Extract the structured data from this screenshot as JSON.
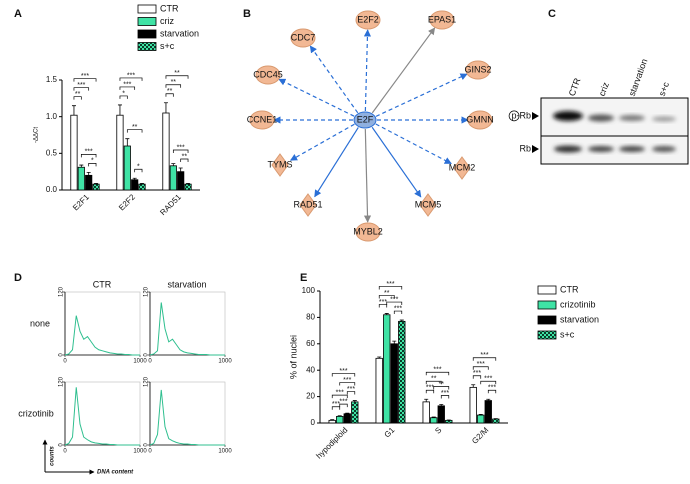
{
  "panels": [
    "A",
    "B",
    "C",
    "D",
    "E"
  ],
  "chart_data": [
    {
      "type": "bar",
      "y_label": "-ΔΔCt",
      "categories": [
        "E2F1",
        "E2F2",
        "RAD51"
      ],
      "series": [
        {
          "name": "CTR",
          "color": "#ffffff",
          "values": [
            1.02,
            1.02,
            1.05
          ],
          "errors": [
            0.13,
            0.14,
            0.14
          ]
        },
        {
          "name": "criz",
          "color": "#3fe3a5",
          "values": [
            0.31,
            0.6,
            0.33
          ],
          "errors": [
            0.03,
            0.1,
            0.03
          ]
        },
        {
          "name": "starvation",
          "color": "#000000",
          "values": [
            0.2,
            0.14,
            0.25
          ],
          "errors": [
            0.04,
            0.02,
            0.05
          ]
        },
        {
          "name": "s+c",
          "color": "#3fe3a5",
          "pattern": "checker",
          "values": [
            0.08,
            0.08,
            0.08
          ],
          "errors": [
            0.01,
            0.01,
            0.01
          ]
        }
      ],
      "ylim": [
        0,
        1.5
      ],
      "yticks": [
        {
          "value": 0,
          "label": "0.0"
        },
        0.5,
        {
          "value": 1,
          "label": "1.0"
        },
        1.5
      ],
      "significance": [
        [
          "***",
          "***",
          "**",
          "***",
          "*"
        ],
        [
          "***",
          "***",
          "*",
          "**",
          "*"
        ],
        [
          "**",
          "**",
          "**",
          "***",
          "**"
        ]
      ]
    },
    {
      "type": "line",
      "color": "#2fbf8f",
      "x": [
        0,
        50,
        100,
        150,
        200,
        250,
        300,
        350,
        400,
        450,
        500,
        550,
        600,
        650,
        700,
        750,
        800,
        850,
        900,
        950,
        1000
      ],
      "values": [
        0,
        2,
        10,
        75,
        45,
        30,
        35,
        25,
        15,
        10,
        8,
        6,
        4,
        3,
        2,
        2,
        1,
        1,
        0,
        0,
        0
      ],
      "xlim": [
        0,
        1000
      ],
      "xticks": [
        0,
        1000
      ],
      "ylim": [
        0,
        120
      ],
      "yticks": [
        0,
        120
      ]
    },
    {
      "type": "line",
      "color": "#2fbf8f",
      "x": [
        0,
        50,
        100,
        150,
        200,
        250,
        300,
        350,
        400,
        450,
        500,
        550,
        600,
        650,
        700,
        750,
        800,
        850,
        900,
        950,
        1000
      ],
      "values": [
        0,
        2,
        8,
        100,
        50,
        25,
        30,
        20,
        10,
        6,
        4,
        3,
        2,
        1,
        1,
        1,
        0,
        0,
        0,
        0,
        0
      ],
      "xlim": [
        0,
        1000
      ],
      "xticks": [
        0,
        1000
      ],
      "ylim": [
        0,
        120
      ],
      "yticks": [
        0,
        120
      ]
    },
    {
      "type": "line",
      "color": "#2fbf8f",
      "x": [
        0,
        50,
        100,
        150,
        200,
        250,
        300,
        350,
        400,
        450,
        500,
        550,
        600,
        650,
        700,
        750,
        800,
        850,
        900,
        950,
        1000
      ],
      "values": [
        0,
        3,
        15,
        110,
        40,
        15,
        10,
        6,
        4,
        3,
        2,
        2,
        1,
        1,
        0,
        0,
        0,
        0,
        0,
        0,
        0
      ],
      "xlim": [
        0,
        1000
      ],
      "xticks": [
        0,
        1000
      ],
      "ylim": [
        0,
        120
      ],
      "yticks": [
        0,
        120
      ]
    },
    {
      "type": "line",
      "color": "#2fbf8f",
      "x": [
        0,
        50,
        100,
        150,
        200,
        250,
        300,
        350,
        400,
        450,
        500,
        550,
        600,
        650,
        700,
        750,
        800,
        850,
        900,
        950,
        1000
      ],
      "values": [
        0,
        3,
        20,
        105,
        35,
        12,
        8,
        5,
        3,
        2,
        2,
        1,
        1,
        0,
        0,
        0,
        0,
        0,
        0,
        0,
        0
      ],
      "xlim": [
        0,
        1000
      ],
      "xticks": [
        0,
        1000
      ],
      "ylim": [
        0,
        120
      ],
      "yticks": [
        0,
        120
      ]
    },
    {
      "type": "bar",
      "y_label": "% of nuclei",
      "categories": [
        "hypodiploid",
        "G1",
        "S",
        "G2/M"
      ],
      "series": [
        {
          "name": "CTR",
          "color": "#ffffff",
          "values": [
            2,
            49,
            16,
            27
          ],
          "errors": [
            0.5,
            1,
            2,
            2
          ]
        },
        {
          "name": "crizotinib",
          "color": "#3fe3a5",
          "values": [
            5,
            82,
            4,
            6
          ],
          "errors": [
            0.5,
            1,
            0.5,
            0.5
          ]
        },
        {
          "name": "starvation",
          "color": "#000000",
          "values": [
            7,
            60,
            13,
            17
          ],
          "errors": [
            0.5,
            2,
            1,
            1
          ]
        },
        {
          "name": "s+c",
          "color": "#3fe3a5",
          "pattern": "checker",
          "values": [
            16,
            77,
            2,
            3
          ],
          "errors": [
            1,
            1,
            0.3,
            0.3
          ]
        }
      ],
      "ylim": [
        0,
        100
      ],
      "yticks": [
        0,
        20,
        40,
        60,
        80,
        100
      ],
      "significance": [
        [
          "***",
          "***",
          "***",
          "***",
          "***",
          "***"
        ],
        [
          "***",
          "**",
          "***",
          "***",
          "***"
        ],
        [
          "***",
          "**",
          "***",
          "**",
          "***"
        ],
        [
          "***",
          "***",
          "***",
          "***",
          "***"
        ]
      ]
    }
  ],
  "network": {
    "center": "E2F",
    "nodes": [
      "E2F2",
      "EPAS1",
      "GINS2",
      "GMNN",
      "MCM2",
      "MCM5",
      "MYBL2",
      "RAD51",
      "TYMS",
      "CCNE1",
      "CDC45",
      "CDC7"
    ]
  },
  "blot": {
    "lanes": [
      "CTR",
      "criz",
      "starvation",
      "s+c"
    ],
    "rows": [
      "p-Rb",
      "Rb"
    ]
  },
  "flow": {
    "columns": [
      "CTR",
      "starvation"
    ],
    "rows": [
      "none",
      "crizotinib"
    ],
    "x_label": "DNA content",
    "y_label": "counts"
  }
}
